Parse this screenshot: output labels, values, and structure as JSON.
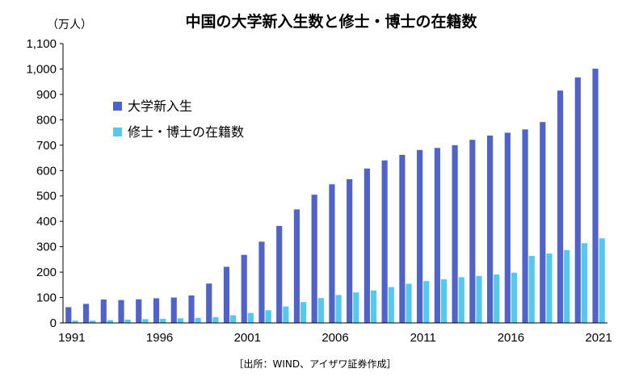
{
  "chart_data": {
    "type": "bar",
    "title": "中国の大学新入生数と修士・博士の在籍数",
    "unit_label": "（万人）",
    "source": "［出所：WIND、アイザワ証券作成］",
    "ylim": [
      0,
      1100
    ],
    "ytick_labels": [
      "0",
      "100",
      "200",
      "300",
      "400",
      "500",
      "600",
      "700",
      "800",
      "900",
      "1,000",
      "1,100"
    ],
    "xtick_labels": [
      "1991",
      "1996",
      "2001",
      "2006",
      "2011",
      "2016",
      "2021"
    ],
    "legend_position": "upper-left",
    "categories": [
      "1991",
      "1992",
      "1993",
      "1994",
      "1995",
      "1996",
      "1997",
      "1998",
      "1999",
      "2000",
      "2001",
      "2002",
      "2003",
      "2004",
      "2005",
      "2006",
      "2007",
      "2008",
      "2009",
      "2010",
      "2011",
      "2012",
      "2013",
      "2014",
      "2015",
      "2016",
      "2017",
      "2018",
      "2019",
      "2020",
      "2021"
    ],
    "series": [
      {
        "name": "大学新入生",
        "color": "#4f63c8",
        "values": [
          62,
          75,
          92,
          90,
          93,
          97,
          100,
          108,
          155,
          221,
          268,
          320,
          382,
          447,
          505,
          546,
          566,
          608,
          640,
          662,
          681,
          689,
          700,
          721,
          738,
          749,
          762,
          791,
          915,
          967,
          1001
        ]
      },
      {
        "name": "修士・博士の在籍数",
        "color": "#55c8ec",
        "values": [
          9,
          9,
          11,
          13,
          15,
          16,
          18,
          20,
          23,
          30,
          39,
          50,
          65,
          82,
          98,
          110,
          120,
          128,
          141,
          154,
          165,
          172,
          180,
          185,
          191,
          198,
          264,
          273,
          287,
          314,
          333
        ]
      }
    ]
  }
}
